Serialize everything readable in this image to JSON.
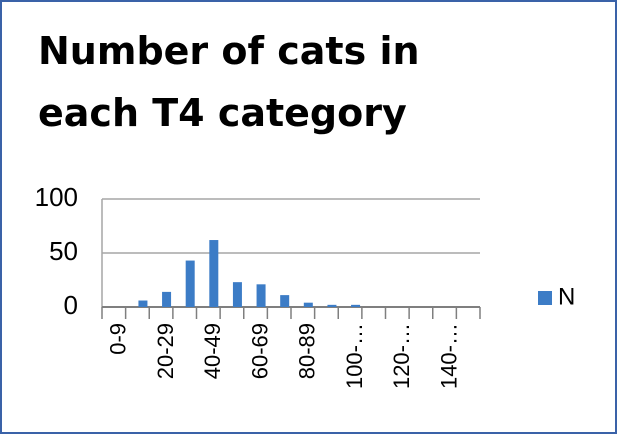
{
  "chart_data": {
    "type": "bar",
    "title": "Number of cats in each T4 category",
    "categories": [
      "0-9",
      null,
      "20-29",
      null,
      "40-49",
      null,
      "60-69",
      null,
      "80-89",
      null,
      "100-…",
      null,
      "120-…",
      null,
      "140-…",
      null
    ],
    "series": [
      {
        "name": "N",
        "color": "#3c7cc6",
        "values": [
          0,
          6,
          14,
          43,
          62,
          23,
          21,
          11,
          4,
          2,
          2,
          0,
          0,
          0,
          0,
          0
        ]
      }
    ],
    "ylim": [
      0,
      100
    ],
    "yticks": [
      0,
      50,
      100
    ],
    "grid": true,
    "legend": "right"
  }
}
